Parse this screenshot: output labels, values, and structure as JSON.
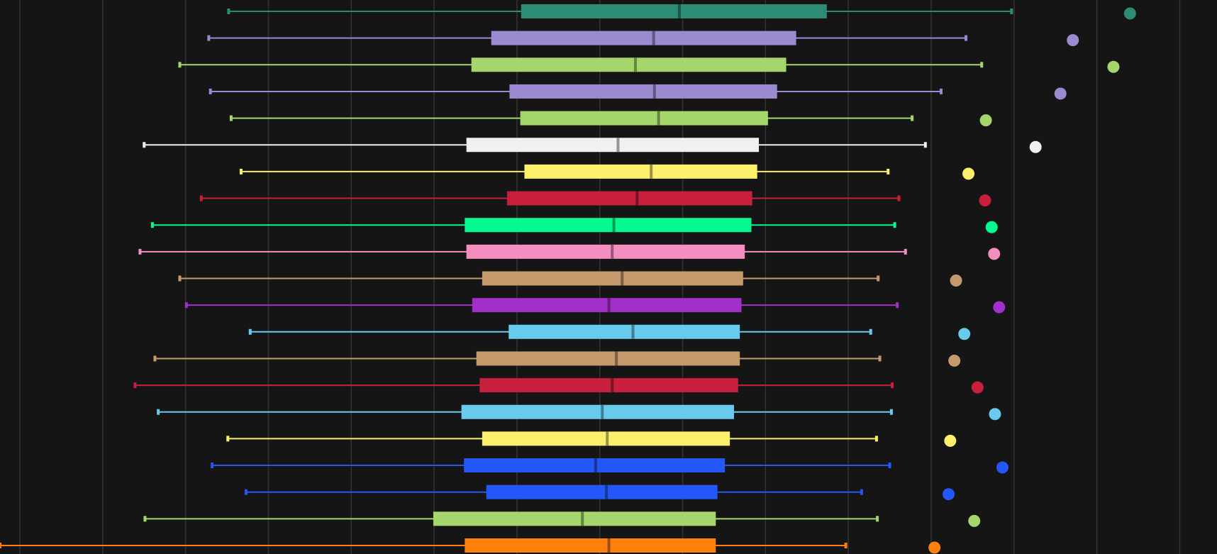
{
  "chart_data": {
    "type": "boxplot",
    "orientation": "horizontal",
    "background": "#151515",
    "grid": "vertical",
    "grid_color": "#333333",
    "title": "",
    "xlabel": "",
    "ylabel": "",
    "xlim": [
      -0.24,
      14.45
    ],
    "grid_x": [
      0,
      1,
      2,
      3,
      4,
      5,
      6,
      7,
      8,
      9,
      10,
      11,
      12,
      13,
      14
    ],
    "series": [
      {
        "color": "#2e8b74",
        "whisker_low": 2.52,
        "q1": 6.05,
        "median": 7.96,
        "q3": 9.74,
        "whisker_high": 11.97,
        "outliers": [
          13.4
        ]
      },
      {
        "color": "#9c8ad1",
        "whisker_low": 2.28,
        "q1": 5.69,
        "median": 7.65,
        "q3": 9.37,
        "whisker_high": 11.42,
        "outliers": [
          12.71
        ]
      },
      {
        "color": "#a5d66b",
        "whisker_low": 1.93,
        "q1": 5.45,
        "median": 7.43,
        "q3": 9.25,
        "whisker_high": 11.61,
        "outliers": [
          13.2
        ]
      },
      {
        "color": "#9c8ad1",
        "whisker_low": 2.3,
        "q1": 5.91,
        "median": 7.66,
        "q3": 9.14,
        "whisker_high": 11.12,
        "outliers": [
          12.56
        ]
      },
      {
        "color": "#a5d66b",
        "whisker_low": 2.55,
        "q1": 6.04,
        "median": 7.71,
        "q3": 9.03,
        "whisker_high": 10.77,
        "outliers": [
          11.66
        ]
      },
      {
        "color": "#f0f0f0",
        "whisker_low": 1.5,
        "q1": 5.39,
        "median": 7.22,
        "q3": 8.92,
        "whisker_high": 10.93,
        "outliers": [
          12.26
        ]
      },
      {
        "color": "#fcef6c",
        "whisker_low": 2.67,
        "q1": 6.09,
        "median": 7.62,
        "q3": 8.9,
        "whisker_high": 10.48,
        "outliers": [
          11.45
        ]
      },
      {
        "color": "#c71f3c",
        "whisker_low": 2.19,
        "q1": 5.88,
        "median": 7.45,
        "q3": 8.84,
        "whisker_high": 10.61,
        "outliers": [
          11.65
        ]
      },
      {
        "color": "#04fa8f",
        "whisker_low": 1.6,
        "q1": 5.37,
        "median": 7.17,
        "q3": 8.83,
        "whisker_high": 10.56,
        "outliers": [
          11.73
        ]
      },
      {
        "color": "#f58ec0",
        "whisker_low": 1.45,
        "q1": 5.39,
        "median": 7.15,
        "q3": 8.75,
        "whisker_high": 10.69,
        "outliers": [
          11.76
        ]
      },
      {
        "color": "#c49a6c",
        "whisker_low": 1.93,
        "q1": 5.58,
        "median": 7.27,
        "q3": 8.73,
        "whisker_high": 10.36,
        "outliers": [
          11.3
        ]
      },
      {
        "color": "#a12fc9",
        "whisker_low": 2.01,
        "q1": 5.46,
        "median": 7.11,
        "q3": 8.71,
        "whisker_high": 10.59,
        "outliers": [
          11.82
        ]
      },
      {
        "color": "#68cbee",
        "whisker_low": 2.78,
        "q1": 5.9,
        "median": 7.4,
        "q3": 8.69,
        "whisker_high": 10.27,
        "outliers": [
          11.4
        ]
      },
      {
        "color": "#c49a6c",
        "whisker_low": 1.63,
        "q1": 5.51,
        "median": 7.2,
        "q3": 8.69,
        "whisker_high": 10.38,
        "outliers": [
          11.28
        ]
      },
      {
        "color": "#c71f3c",
        "whisker_low": 1.39,
        "q1": 5.55,
        "median": 7.15,
        "q3": 8.67,
        "whisker_high": 10.53,
        "outliers": [
          11.56
        ]
      },
      {
        "color": "#68cbee",
        "whisker_low": 1.67,
        "q1": 5.33,
        "median": 7.03,
        "q3": 8.62,
        "whisker_high": 10.52,
        "outliers": [
          11.77
        ]
      },
      {
        "color": "#fcef6c",
        "whisker_low": 2.51,
        "q1": 5.58,
        "median": 7.09,
        "q3": 8.57,
        "whisker_high": 10.34,
        "outliers": [
          11.23
        ]
      },
      {
        "color": "#2457f7",
        "whisker_low": 2.32,
        "q1": 5.36,
        "median": 6.95,
        "q3": 8.51,
        "whisker_high": 10.5,
        "outliers": [
          11.86
        ]
      },
      {
        "color": "#2457f7",
        "whisker_low": 2.73,
        "q1": 5.63,
        "median": 7.08,
        "q3": 8.42,
        "whisker_high": 10.16,
        "outliers": [
          11.21
        ]
      },
      {
        "color": "#a5d66b",
        "whisker_low": 1.51,
        "q1": 4.99,
        "median": 6.79,
        "q3": 8.4,
        "whisker_high": 10.35,
        "outliers": [
          11.52
        ]
      },
      {
        "color": "#ff7f0e",
        "whisker_low": -0.24,
        "q1": 5.37,
        "median": 7.11,
        "q3": 8.4,
        "whisker_high": 9.97,
        "outliers": [
          11.04
        ]
      }
    ]
  }
}
